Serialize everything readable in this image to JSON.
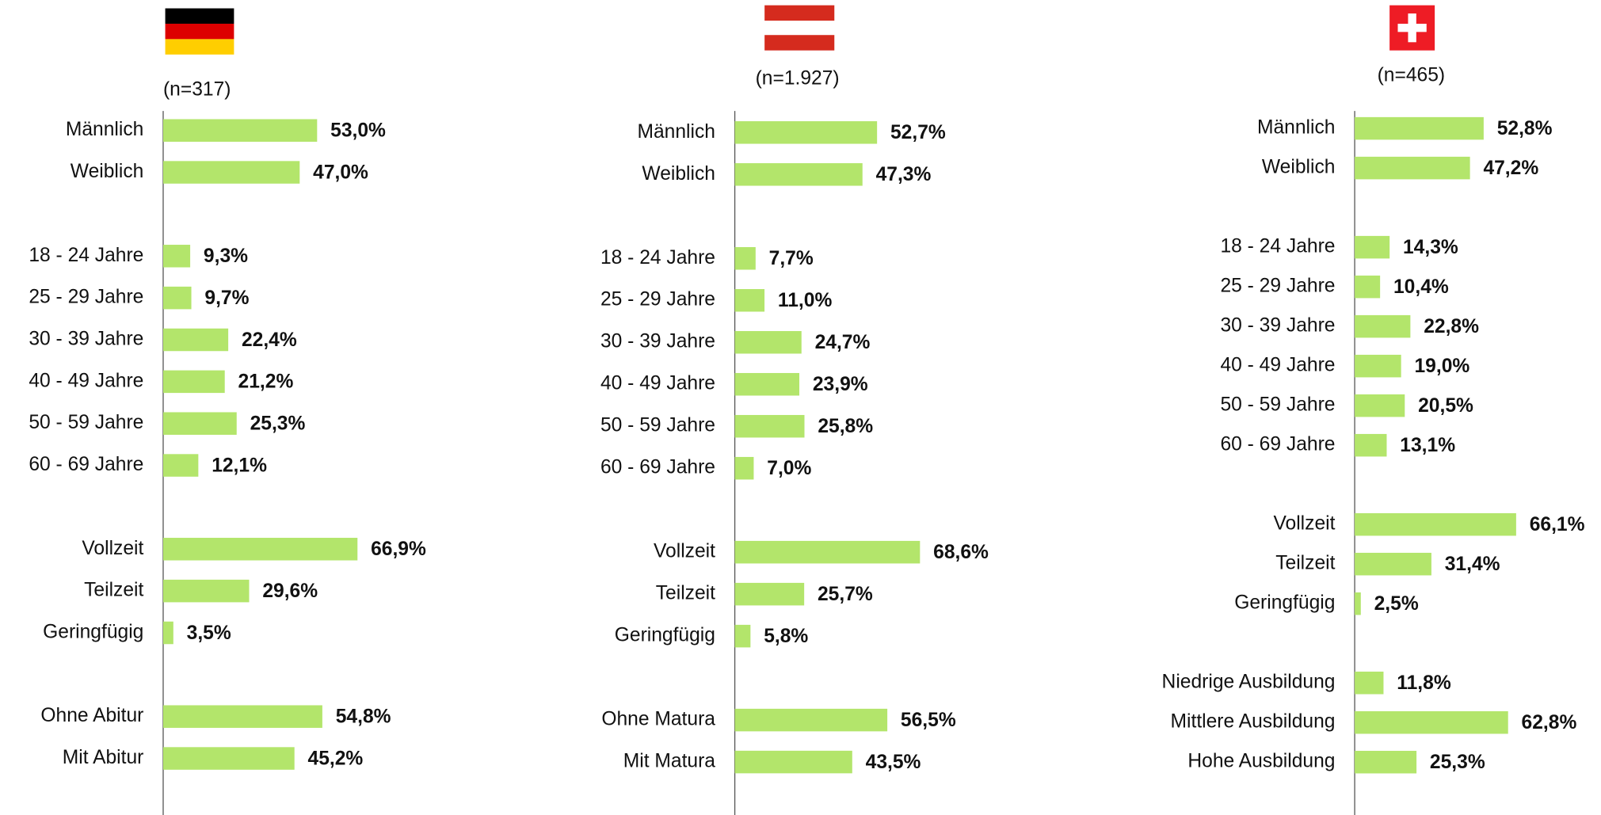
{
  "chart_data": [
    {
      "type": "bar",
      "orientation": "horizontal",
      "subtitle": "(n=317)",
      "color": "#b3e56b",
      "categories": [
        "Männlich",
        "Weiblich",
        null,
        "18 - 24 Jahre",
        "25 - 29 Jahre",
        "30 - 39 Jahre",
        "40 - 49 Jahre",
        "50 - 59 Jahre",
        "60 - 69 Jahre",
        null,
        "Vollzeit",
        "Teilzeit",
        "Geringfügig",
        null,
        "Ohne Abitur",
        "Mit Abitur"
      ],
      "values": [
        53.0,
        47.0,
        null,
        9.3,
        9.7,
        22.4,
        21.2,
        25.3,
        12.1,
        null,
        66.9,
        29.6,
        3.5,
        null,
        54.8,
        45.2
      ],
      "value_labels": [
        "53,0%",
        "47,0%",
        null,
        "9,3%",
        "9,7%",
        "22,4%",
        "21,2%",
        "25,3%",
        "12,1%",
        null,
        "66,9%",
        "29,6%",
        "3,5%",
        null,
        "54,8%",
        "45,2%"
      ]
    },
    {
      "type": "bar",
      "orientation": "horizontal",
      "subtitle": "(n=1.927)",
      "color": "#b3e56b",
      "categories": [
        "Männlich",
        "Weiblich",
        null,
        "18 - 24 Jahre",
        "25 - 29 Jahre",
        "30 - 39 Jahre",
        "40 - 49 Jahre",
        "50 - 59 Jahre",
        "60 - 69 Jahre",
        null,
        "Vollzeit",
        "Teilzeit",
        "Geringfügig",
        null,
        "Ohne Matura",
        "Mit Matura"
      ],
      "values": [
        52.7,
        47.3,
        null,
        7.7,
        11.0,
        24.7,
        23.9,
        25.8,
        7.0,
        null,
        68.6,
        25.7,
        5.8,
        null,
        56.5,
        43.5
      ],
      "value_labels": [
        "52,7%",
        "47,3%",
        null,
        "7,7%",
        "11,0%",
        "24,7%",
        "23,9%",
        "25,8%",
        "7,0%",
        null,
        "68,6%",
        "25,7%",
        "5,8%",
        null,
        "56,5%",
        "43,5%"
      ]
    },
    {
      "type": "bar",
      "orientation": "horizontal",
      "subtitle": "(n=465)",
      "color": "#b3e56b",
      "categories": [
        "Männlich",
        "Weiblich",
        null,
        "18 - 24 Jahre",
        "25 - 29 Jahre",
        "30 - 39 Jahre",
        "40 - 49 Jahre",
        "50 - 59 Jahre",
        "60 - 69 Jahre",
        null,
        "Vollzeit",
        "Teilzeit",
        "Geringfügig",
        null,
        "Niedrige Ausbildung",
        "Mittlere Ausbildung",
        "Hohe Ausbildung"
      ],
      "values": [
        52.8,
        47.2,
        null,
        14.3,
        10.4,
        22.8,
        19.0,
        20.5,
        13.1,
        null,
        66.1,
        31.4,
        2.5,
        null,
        11.8,
        62.8,
        25.3
      ],
      "value_labels": [
        "52,8%",
        "47,2%",
        null,
        "14,3%",
        "10,4%",
        "22,8%",
        "19,0%",
        "20,5%",
        "13,1%",
        null,
        "66,1%",
        "31,4%",
        "2,5%",
        null,
        "11,8%",
        "62,8%",
        "25,3%"
      ]
    }
  ]
}
